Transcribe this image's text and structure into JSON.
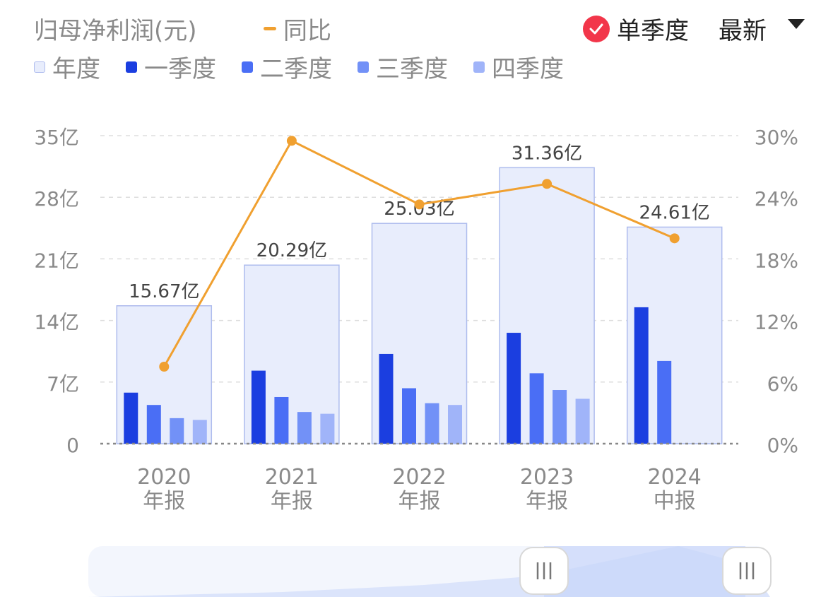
{
  "header": {
    "title": "归母净利润(元)",
    "yoy_label": "同比",
    "single_quarter_label": "单季度",
    "latest_label": "最新"
  },
  "legend": [
    {
      "name": "年度",
      "color": "#e8edfc",
      "border": "#aebcee"
    },
    {
      "name": "一季度",
      "color": "#1b3ee0"
    },
    {
      "name": "二季度",
      "color": "#4a6ef5"
    },
    {
      "name": "三季度",
      "color": "#7291f7"
    },
    {
      "name": "四季度",
      "color": "#a0b4f9"
    }
  ],
  "colors": {
    "yoy_line": "#f0a030",
    "annual_fill": "#e8edfc",
    "annual_border": "#aebcee",
    "grid": "#dddddd",
    "axis_text": "#8a8a8a",
    "check": "#f2364a"
  },
  "chart_data": {
    "type": "bar",
    "categories": [
      {
        "year": "2020",
        "period": "年报"
      },
      {
        "year": "2021",
        "period": "年报"
      },
      {
        "year": "2022",
        "period": "年报"
      },
      {
        "year": "2023",
        "period": "年报"
      },
      {
        "year": "2024",
        "period": "中报"
      }
    ],
    "annual": [
      15.67,
      20.29,
      25.03,
      31.36,
      24.61
    ],
    "annual_labels": [
      "15.67亿",
      "20.29亿",
      "25.03亿",
      "31.36亿",
      "24.61亿"
    ],
    "quarters": [
      [
        5.8,
        4.4,
        2.9,
        2.7
      ],
      [
        8.3,
        5.3,
        3.6,
        3.4
      ],
      [
        10.2,
        6.3,
        4.6,
        4.4
      ],
      [
        12.6,
        8.0,
        6.1,
        5.1
      ],
      [
        15.5,
        9.4,
        null,
        null
      ]
    ],
    "yoy": [
      7.5,
      29.5,
      23.3,
      25.3,
      20.0
    ],
    "y_left": {
      "min": 0,
      "max": 35,
      "ticks": [
        "0",
        "7亿",
        "14亿",
        "21亿",
        "28亿",
        "35亿"
      ]
    },
    "y_right": {
      "min": 0,
      "max": 30,
      "ticks": [
        "0%",
        "6%",
        "12%",
        "18%",
        "24%",
        "30%"
      ]
    },
    "grid": true
  }
}
